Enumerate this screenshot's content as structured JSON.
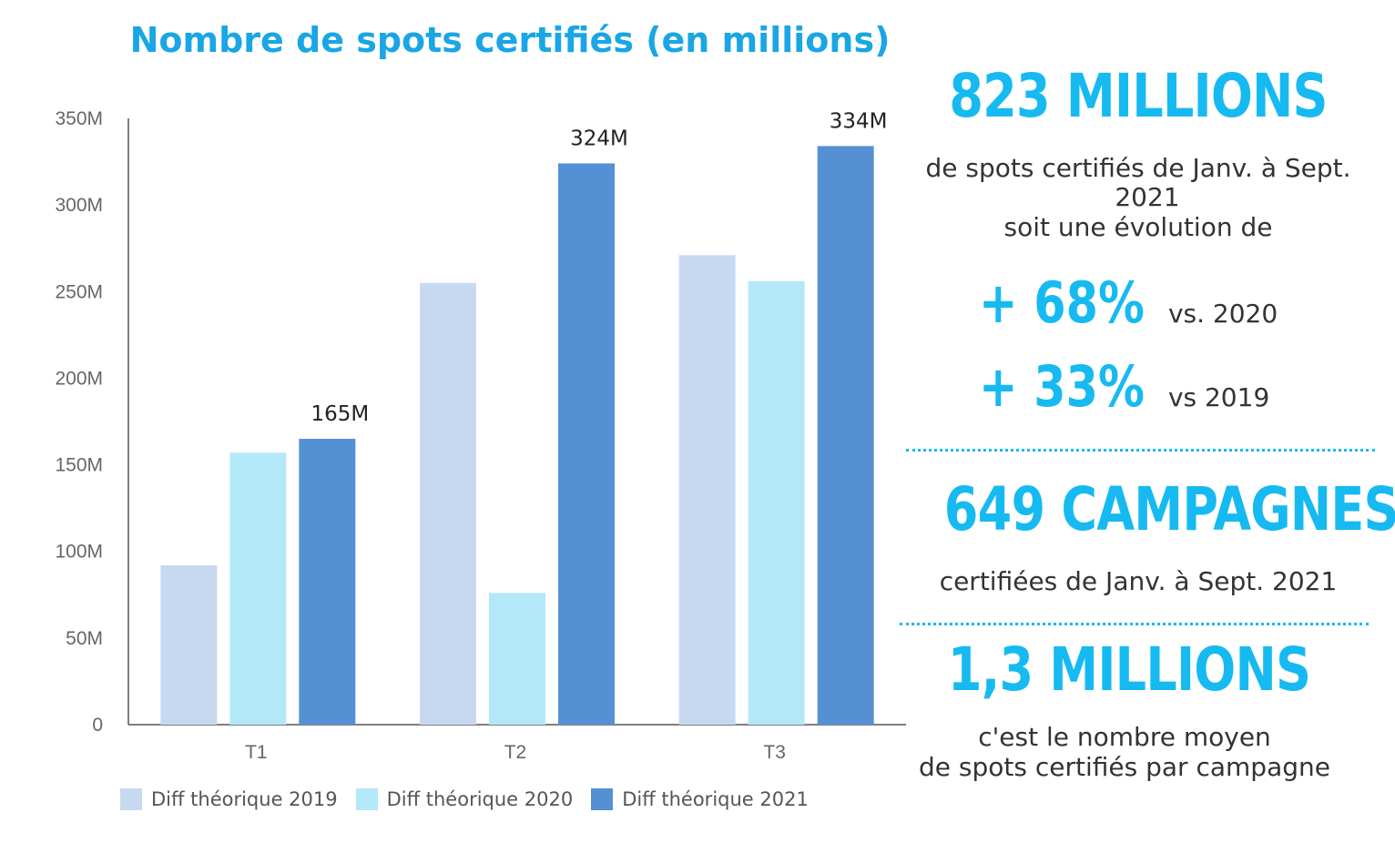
{
  "chart_data": {
    "type": "bar",
    "title": "Nombre de spots certifiés (en millions)",
    "categories": [
      "T1",
      "T2",
      "T3"
    ],
    "series": [
      {
        "name": "Diff théorique 2019",
        "values": [
          92,
          255,
          271
        ],
        "color": "#c7d9f0"
      },
      {
        "name": "Diff théorique 2020",
        "values": [
          157,
          76,
          256
        ],
        "color": "#b3e8f9"
      },
      {
        "name": "Diff théorique 2021",
        "values": [
          165,
          324,
          334
        ],
        "color": "#5690d4",
        "data_labels": [
          "165M",
          "324M",
          "334M"
        ]
      }
    ],
    "y_ticks": [
      "0",
      "50M",
      "100M",
      "150M",
      "200M",
      "250M",
      "300M",
      "350M"
    ],
    "ylim": [
      0,
      350
    ],
    "grid": false,
    "legend_position": "bottom-left"
  },
  "stats": {
    "total_title": "823 MILLIONS",
    "total_line1": "de spots certifiés de Janv. à Sept.",
    "total_line2": "2021",
    "total_line3": "soit une évolution de",
    "evo1_value": "+ 68%",
    "evo1_note": "vs. 2020",
    "evo2_value": "+ 33%",
    "evo2_note": "vs 2019",
    "campaigns_title": "649 CAMPAGNES",
    "campaigns_text": "certifiées de Janv. à Sept.  2021",
    "avg_title": "1,3 MILLIONS",
    "avg_line1": "c'est le nombre moyen",
    "avg_line2": "de spots certifiés par campagne"
  },
  "colors": {
    "accent": "#17baf0",
    "title": "#1aa6e4"
  }
}
